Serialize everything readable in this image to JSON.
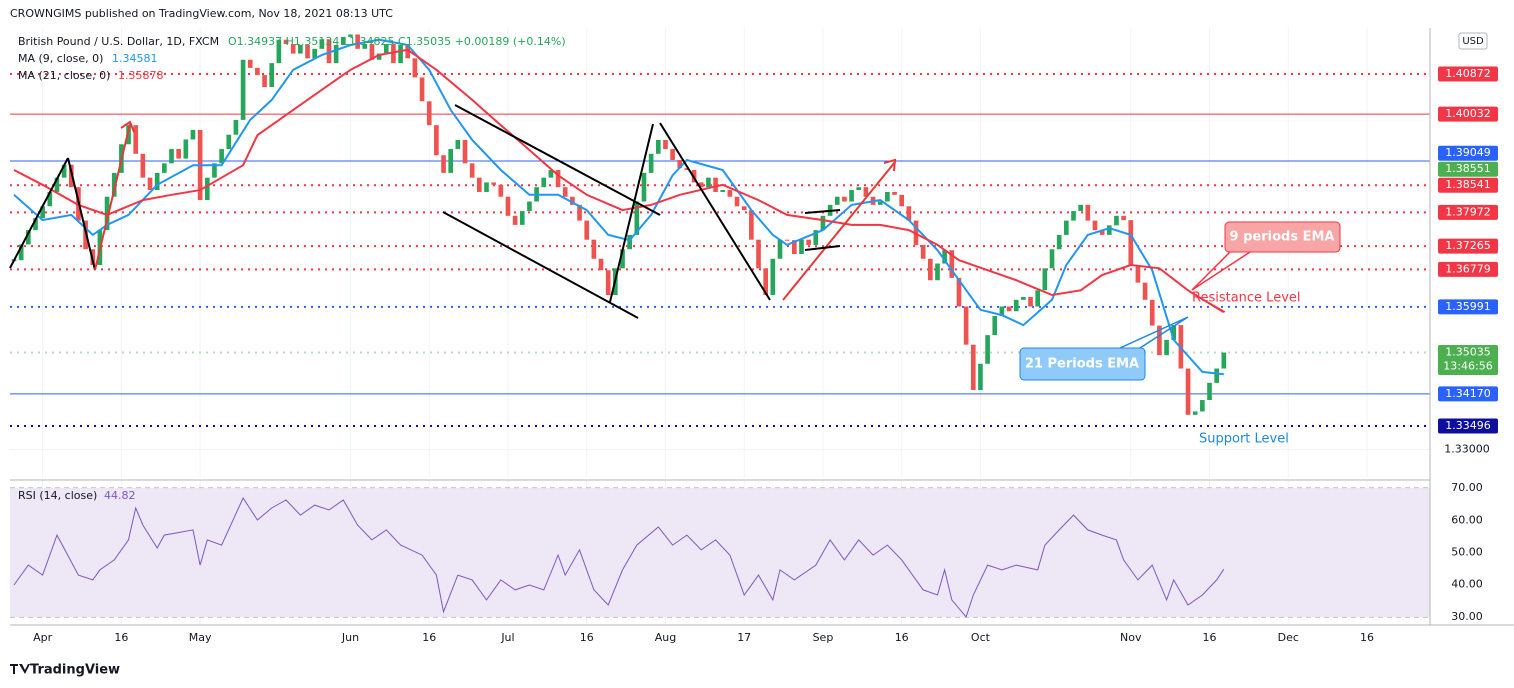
{
  "chart_data": {
    "type": "candlestick",
    "publisher": "CROWNGIMS published on TradingView.com, Nov 18, 2021 08:13 UTC",
    "symbol": "British Pound / U.S. Dollar, 1D, FXCM",
    "ohlc": "O1.34937 H1.35134 L1.34825 C1.35035 +0.00189 (+0.14%)",
    "currency": "USD",
    "countdown": "13:46:56",
    "brand": "TradingView",
    "up_color": "#26a65b",
    "down_color": "#ef5350",
    "closes": [
      1.3697,
      1.373,
      1.376,
      1.3785,
      1.381,
      1.384,
      1.387,
      1.3897,
      1.385,
      1.378,
      1.372,
      1.3687,
      1.376,
      1.383,
      1.388,
      1.394,
      1.398,
      1.392,
      1.387,
      1.3844,
      1.388,
      1.39,
      1.393,
      1.391,
      1.395,
      1.397,
      1.3823,
      1.387,
      1.39,
      1.393,
      1.396,
      1.3991,
      1.4117,
      1.41,
      1.4085,
      1.406,
      1.411,
      1.4159,
      1.415,
      1.413,
      1.4148,
      1.412,
      1.414,
      1.416,
      1.411,
      1.4148,
      1.4165,
      1.417,
      1.414,
      1.415,
      1.4117,
      1.413,
      1.415,
      1.411,
      1.4148,
      1.412,
      1.408,
      1.403,
      1.398,
      1.3917,
      1.388,
      1.393,
      1.3949,
      1.39,
      1.387,
      1.384,
      1.386,
      1.3855,
      1.383,
      1.379,
      1.3771,
      1.38,
      1.382,
      1.385,
      1.387,
      1.3886,
      1.385,
      1.383,
      1.3813,
      1.378,
      1.374,
      1.37,
      1.3676,
      1.3624,
      1.368,
      1.372,
      1.375,
      1.382,
      1.388,
      1.392,
      1.3949,
      1.393,
      1.3907,
      1.389,
      1.3886,
      1.386,
      1.385,
      1.387,
      1.384,
      1.3844,
      1.383,
      1.381,
      1.3802,
      1.374,
      1.368,
      1.3624,
      1.37,
      1.374,
      1.3739,
      1.371,
      1.374,
      1.3729,
      1.376,
      1.379,
      1.3813,
      1.383,
      1.382,
      1.3844,
      1.385,
      1.383,
      1.3813,
      1.382,
      1.384,
      1.3834,
      1.381,
      1.378,
      1.3729,
      1.37,
      1.3655,
      1.369,
      1.3718,
      1.366,
      1.36,
      1.352,
      1.3425,
      1.348,
      1.354,
      1.358,
      1.36,
      1.359,
      1.3614,
      1.362,
      1.36,
      1.3634,
      1.368,
      1.372,
      1.375,
      1.378,
      1.38,
      1.3813,
      1.378,
      1.376,
      1.375,
      1.377,
      1.379,
      1.3781,
      1.3687,
      1.365,
      1.3614,
      1.356,
      1.3498,
      1.353,
      1.3561,
      1.347,
      1.3373,
      1.338,
      1.3404,
      1.344,
      1.347,
      1.35035
    ],
    "xlim": [
      -0.56,
      197.8
    ],
    "xticks": [
      {
        "value": 4,
        "label": "Apr"
      },
      {
        "value": 15,
        "label": "16"
      },
      {
        "value": 26,
        "label": "May"
      },
      {
        "value": 47,
        "label": "Jun"
      },
      {
        "value": 58,
        "label": "16"
      },
      {
        "value": 69,
        "label": "Jul"
      },
      {
        "value": 80,
        "label": "16"
      },
      {
        "value": 91,
        "label": "Aug"
      },
      {
        "value": 102,
        "label": "17"
      },
      {
        "value": 113,
        "label": "Sep"
      },
      {
        "value": 124,
        "label": "16"
      },
      {
        "value": 135,
        "label": "Oct"
      },
      {
        "value": 156,
        "label": "Nov"
      },
      {
        "value": 167,
        "label": "16"
      },
      {
        "value": 178,
        "label": "Dec"
      },
      {
        "value": 189,
        "label": "16"
      }
    ],
    "ylim": [
      1.32406,
      1.41836
    ],
    "yticks": [
      {
        "value": 1.33,
        "label": "1.33000"
      }
    ],
    "grid": true,
    "series": [
      {
        "name": "MA (9, close, 0)",
        "color": "#2196f3",
        "x": [
          0,
          4,
          8,
          11,
          13,
          16,
          20,
          25,
          29,
          33,
          36,
          39,
          43,
          47,
          51,
          55,
          58,
          61,
          64,
          68,
          72,
          76,
          80,
          83,
          86,
          89,
          92,
          94,
          99,
          103,
          106,
          108,
          113,
          117,
          121,
          125,
          129,
          132,
          135,
          138,
          141,
          145,
          147,
          150,
          153,
          156,
          159,
          162,
          166,
          169
        ],
        "values": [
          1.3834,
          1.3781,
          1.3792,
          1.375,
          1.3771,
          1.3792,
          1.3855,
          1.3896,
          1.3896,
          1.3991,
          1.4033,
          1.4096,
          1.4127,
          1.4148,
          1.4159,
          1.4148,
          1.4096,
          1.4012,
          1.3949,
          1.3886,
          1.3834,
          1.3834,
          1.3802,
          1.375,
          1.3739,
          1.3792,
          1.3875,
          1.3907,
          1.3886,
          1.3802,
          1.375,
          1.3729,
          1.376,
          1.3813,
          1.3823,
          1.3781,
          1.3718,
          1.3655,
          1.3593,
          1.3582,
          1.3561,
          1.3614,
          1.3687,
          1.375,
          1.3764,
          1.375,
          1.3676,
          1.353,
          1.3463,
          1.34581
        ]
      },
      {
        "name": "MA (21, close, 0)",
        "color": "#f23645",
        "x": [
          0,
          4,
          9,
          13,
          18,
          22,
          26,
          32,
          34,
          39,
          43,
          47,
          51,
          55,
          59,
          64,
          68,
          72,
          76,
          80,
          85,
          89,
          93,
          99,
          104,
          108,
          113,
          117,
          121,
          125,
          129,
          132,
          136,
          140,
          145,
          149,
          152,
          156,
          160,
          164,
          169
        ],
        "values": [
          1.3886,
          1.3855,
          1.3813,
          1.3792,
          1.3823,
          1.3834,
          1.3844,
          1.3896,
          1.3959,
          1.4012,
          1.4054,
          1.4096,
          1.4127,
          1.4138,
          1.4096,
          1.4033,
          1.398,
          1.3928,
          1.3875,
          1.3834,
          1.3802,
          1.3813,
          1.3834,
          1.3855,
          1.3823,
          1.3792,
          1.3781,
          1.3771,
          1.3771,
          1.376,
          1.3729,
          1.3697,
          1.3676,
          1.3655,
          1.3624,
          1.3634,
          1.3666,
          1.3687,
          1.368,
          1.3634,
          1.35878
        ]
      }
    ],
    "levels": [
      {
        "price": 1.40872,
        "color": "#f23645",
        "style": "dotted"
      },
      {
        "price": 1.40032,
        "color": "#f23645",
        "style": "solid"
      },
      {
        "price": 1.39049,
        "color": "#2962ff",
        "style": "solid"
      },
      {
        "price": 1.38551,
        "color": "#4caf50",
        "style": "none"
      },
      {
        "price": 1.38541,
        "color": "#f23645",
        "style": "dotted"
      },
      {
        "price": 1.37972,
        "color": "#f23645",
        "style": "dotted"
      },
      {
        "price": 1.37265,
        "color": "#f23645",
        "style": "dotted"
      },
      {
        "price": 1.36779,
        "color": "#f23645",
        "style": "dotted"
      },
      {
        "price": 1.35991,
        "color": "#2962ff",
        "style": "dotted"
      },
      {
        "price": 1.35035,
        "color": "#4caf50",
        "style": "dotted"
      },
      {
        "price": 1.3417,
        "label": "1.34170",
        "color": "#2962ff",
        "style": "solid"
      },
      {
        "price": 1.33496,
        "color": "#0d0d9e",
        "style": "dotted"
      }
    ],
    "rsi": {
      "name": "RSI (14, close)",
      "color": "#7e57c2",
      "x": [
        0,
        2,
        4,
        6,
        9,
        11,
        12,
        14,
        16,
        17,
        18,
        20,
        21,
        25,
        26,
        27,
        29,
        32,
        34,
        36,
        38,
        40,
        42,
        44,
        46,
        48,
        50,
        52,
        54,
        57,
        59,
        60,
        62,
        64,
        66,
        68,
        70,
        72,
        74,
        76,
        77,
        79,
        81,
        83,
        85,
        87,
        90,
        92,
        94,
        96,
        98,
        100,
        102,
        104,
        106,
        107,
        109,
        112,
        114,
        116,
        118,
        120,
        122,
        124,
        127,
        129,
        130,
        131,
        133,
        134,
        136,
        138,
        140,
        143,
        144,
        146,
        148,
        150,
        152,
        154,
        155,
        157,
        159,
        161,
        162,
        164,
        166,
        168,
        169
      ],
      "values": [
        39.9,
        46.1,
        43.0,
        55.4,
        43.0,
        41.5,
        44.6,
        47.7,
        53.9,
        63.8,
        58.5,
        51.4,
        55.4,
        57.0,
        46.1,
        53.9,
        52.3,
        66.9,
        60.1,
        63.8,
        66.3,
        61.6,
        64.7,
        63.2,
        66.3,
        58.5,
        53.9,
        57.0,
        52.3,
        49.2,
        43.0,
        31.6,
        43.0,
        41.5,
        35.3,
        41.5,
        38.4,
        39.9,
        38.4,
        49.2,
        43.0,
        50.8,
        38.4,
        33.7,
        44.6,
        52.3,
        57.9,
        52.3,
        55.4,
        50.8,
        53.9,
        49.2,
        36.8,
        43.0,
        35.3,
        44.6,
        41.5,
        46.1,
        53.9,
        47.7,
        53.9,
        49.2,
        52.3,
        47.7,
        38.4,
        36.8,
        44.6,
        35.3,
        30.0,
        36.8,
        46.1,
        44.6,
        46.1,
        44.6,
        52.3,
        57.0,
        61.6,
        57.0,
        55.4,
        53.9,
        47.7,
        41.5,
        46.1,
        35.3,
        41.5,
        33.7,
        36.8,
        41.5,
        44.82
      ],
      "ylim": [
        27.5,
        72.5
      ],
      "yticks": [
        {
          "value": 30,
          "label": "30.00"
        },
        {
          "value": 40,
          "label": "40.00"
        },
        {
          "value": 50,
          "label": "50.00"
        },
        {
          "value": 60,
          "label": "60.00"
        },
        {
          "value": 70,
          "label": "70.00"
        }
      ]
    },
    "annotations": [
      "9 periods EMA",
      "21 Periods EMA",
      "Resistance Level",
      "Support Level"
    ]
  }
}
